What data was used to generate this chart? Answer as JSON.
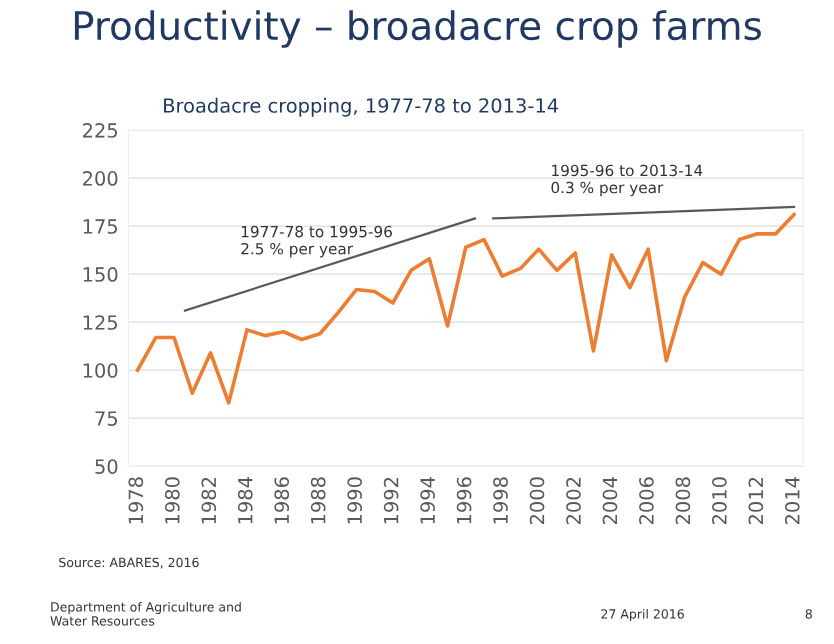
{
  "chart_data": {
    "type": "line",
    "title": "Productivity – broadacre crop farms",
    "subtitle": "Broadacre cropping, 1977-78 to 2013-14",
    "x": [
      1978,
      1979,
      1980,
      1981,
      1982,
      1983,
      1984,
      1985,
      1986,
      1987,
      1988,
      1989,
      1990,
      1991,
      1992,
      1993,
      1994,
      1995,
      1996,
      1997,
      1998,
      1999,
      2000,
      2001,
      2002,
      2003,
      2004,
      2005,
      2006,
      2007,
      2008,
      2009,
      2010,
      2011,
      2012,
      2013,
      2014
    ],
    "series": [
      {
        "color": "#ed7d31",
        "values": [
          100,
          117,
          117,
          88,
          109,
          83,
          121,
          118,
          120,
          116,
          119,
          130,
          142,
          141,
          135,
          152,
          158,
          123,
          164,
          168,
          149,
          153,
          163,
          152,
          161,
          110,
          160,
          143,
          163,
          105,
          138,
          156,
          150,
          168,
          171,
          171,
          181
        ]
      },
      {
        "type": "line",
        "color": "#595959",
        "x": [
          1980.6,
          1996.5
        ],
        "values": [
          131,
          179
        ]
      },
      {
        "type": "line",
        "color": "#595959",
        "x": [
          1997.5,
          2014
        ],
        "values": [
          179,
          185
        ]
      }
    ],
    "xlim": [
      1977.5,
      2014.5
    ],
    "xticks": [
      1978,
      1980,
      1982,
      1984,
      1986,
      1988,
      1990,
      1992,
      1994,
      1996,
      1998,
      2000,
      2002,
      2004,
      2006,
      2008,
      2010,
      2012,
      2014
    ],
    "ylim": [
      50,
      225
    ],
    "yticks": [
      50,
      75,
      100,
      125,
      150,
      175,
      200,
      225
    ],
    "grid": "y",
    "legend": false,
    "annotations": [
      "1977-78 to 1995-96\n2.5 % per year",
      "1995-96 to 2013-14\n0.3 % per year",
      "Source: ABARES, 2016",
      "Department of Agriculture and\nWater Resources",
      "27 April 2016",
      "8"
    ]
  }
}
